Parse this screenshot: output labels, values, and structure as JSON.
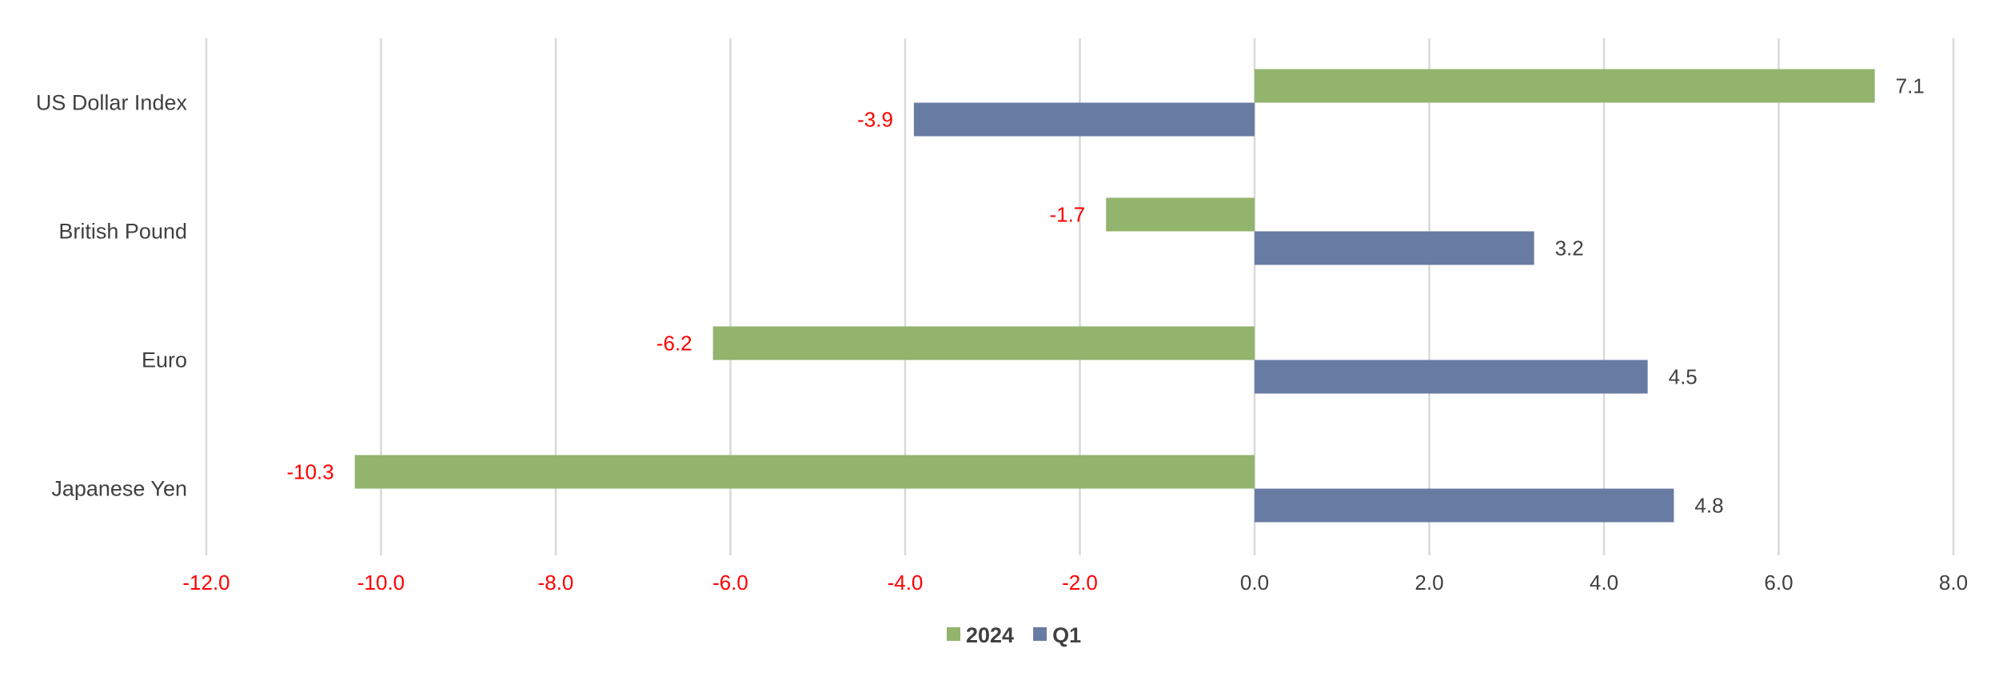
{
  "chart_data": {
    "type": "bar",
    "orientation": "horizontal",
    "categories": [
      "US Dollar Index",
      "British Pound",
      "Euro",
      "Japanese Yen"
    ],
    "series": [
      {
        "name": "2024",
        "values": [
          7.1,
          -1.7,
          -6.2,
          -10.3
        ],
        "color": "#92b46c"
      },
      {
        "name": "Q1",
        "values": [
          -3.9,
          3.2,
          4.5,
          4.8
        ],
        "color": "#687ba3"
      }
    ],
    "xlim": [
      -12.0,
      8.0
    ],
    "x_ticks": [
      -12.0,
      -10.0,
      -8.0,
      -6.0,
      -4.0,
      -2.0,
      0.0,
      2.0,
      4.0,
      6.0,
      8.0
    ],
    "tick_format_decimals": 1,
    "grid": "vertical",
    "legend_position": "bottom",
    "negative_label_color": "#ff0000",
    "positive_label_color": "#404040",
    "gridline_color": "#d9d9d9"
  }
}
